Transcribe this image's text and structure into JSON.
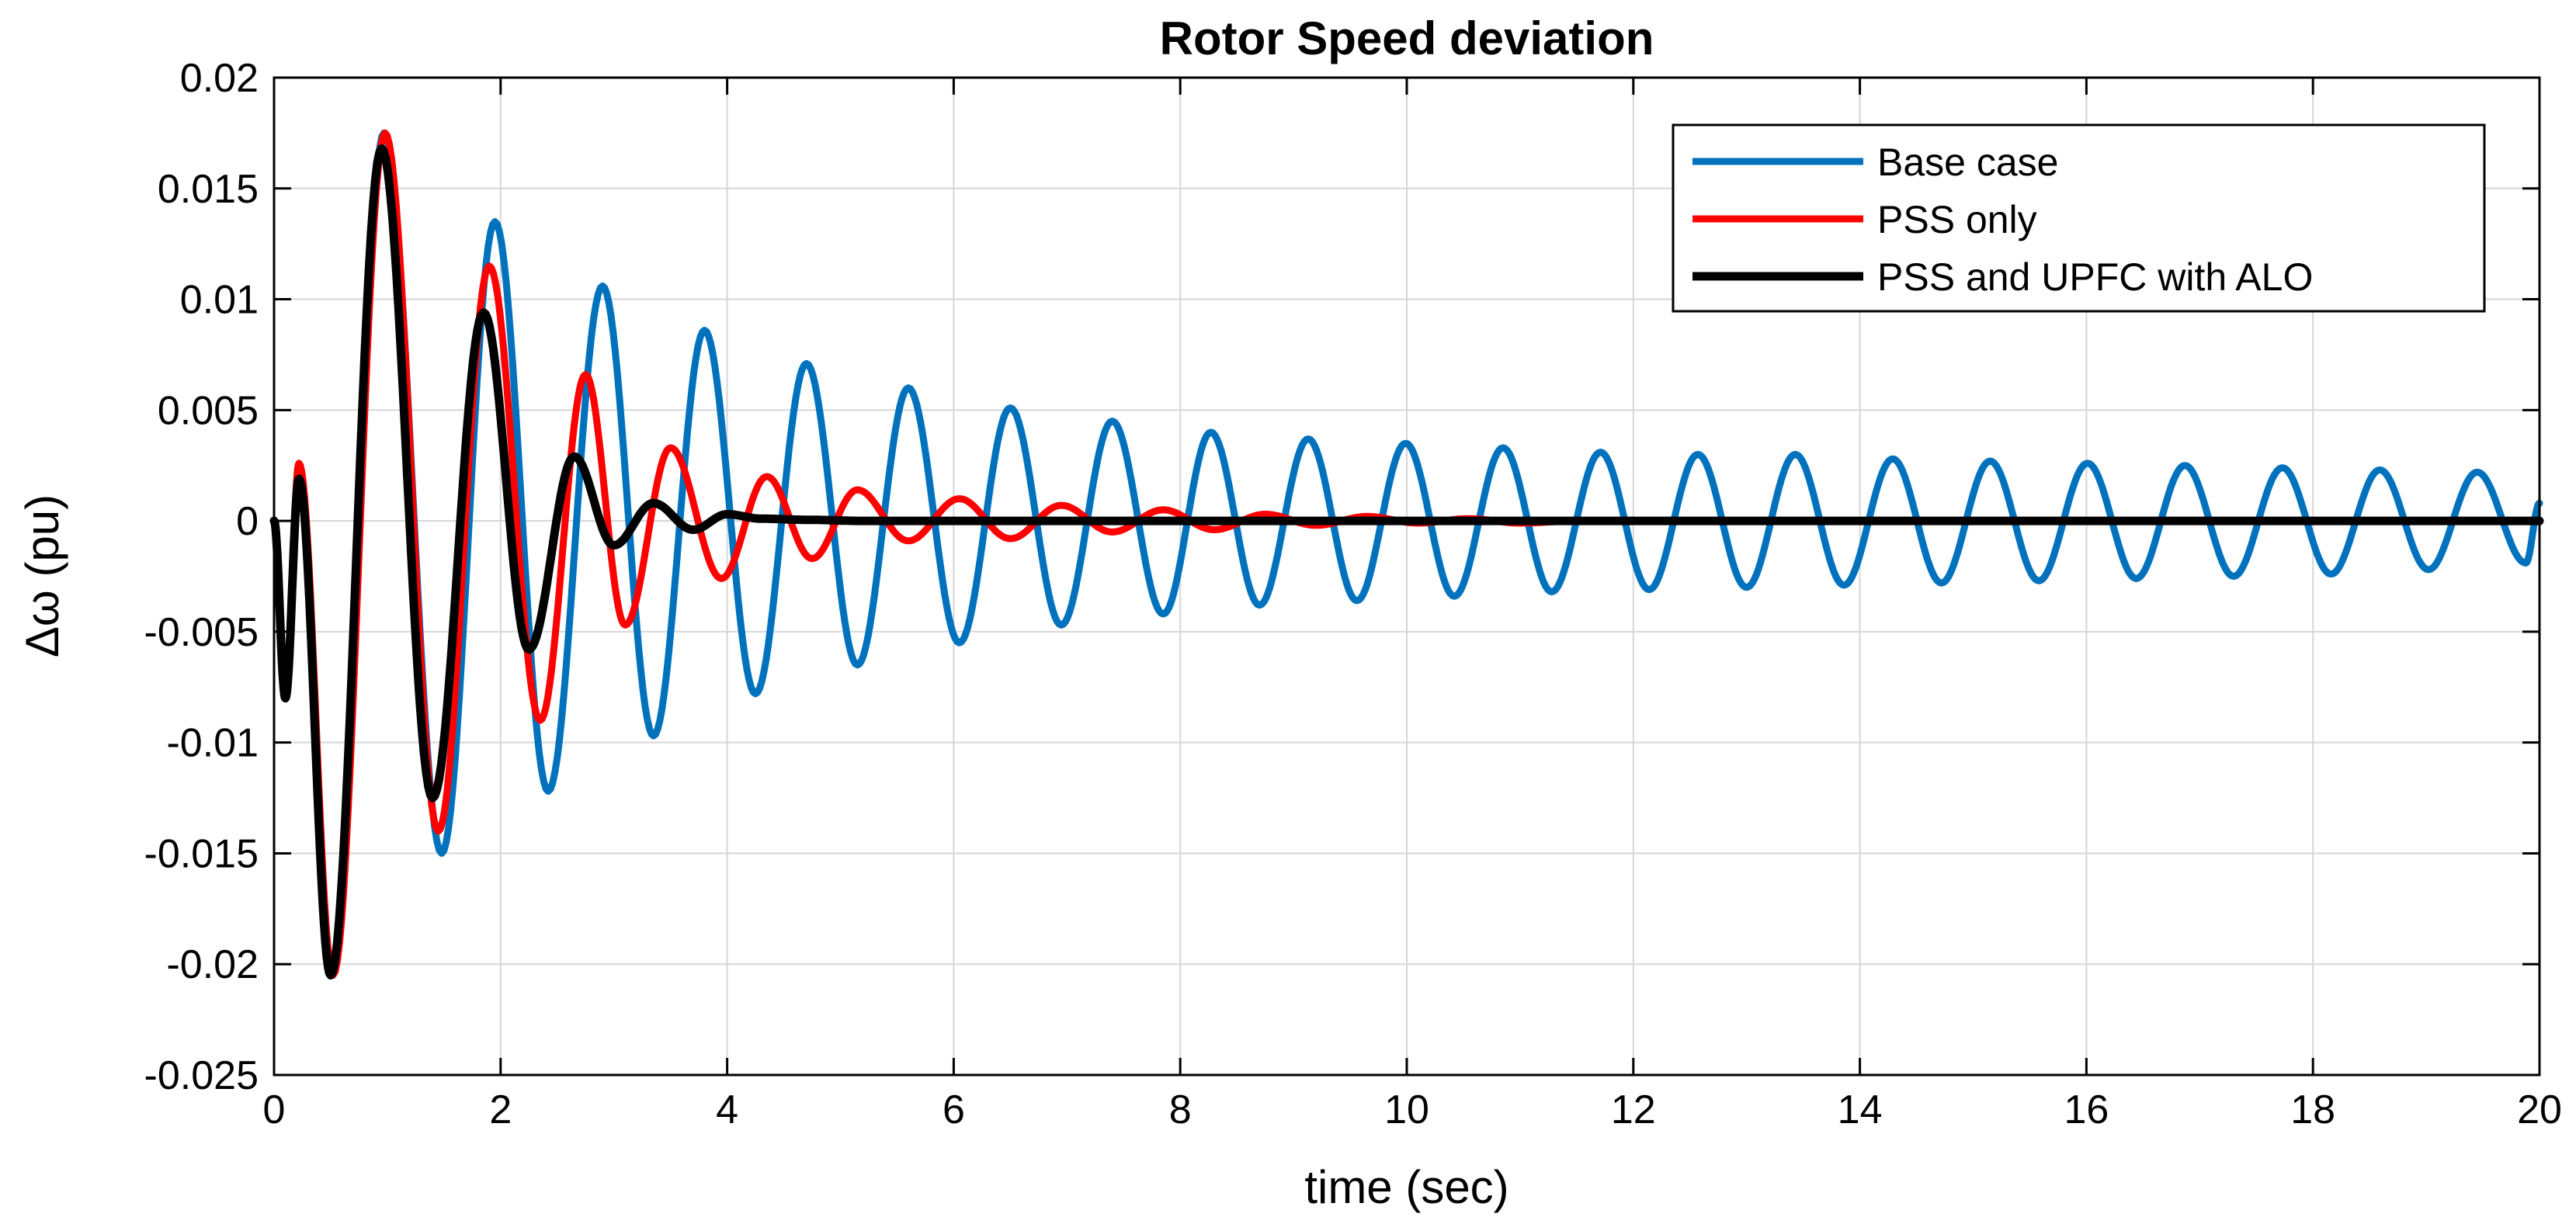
{
  "chart_data": {
    "type": "line",
    "title": "Rotor Speed deviation",
    "xlabel": "time (sec)",
    "ylabel": "Δω (pu)",
    "xlim": [
      0,
      20
    ],
    "ylim": [
      -0.025,
      0.02
    ],
    "xticks": [
      0,
      2,
      4,
      6,
      8,
      10,
      12,
      14,
      16,
      18,
      20
    ],
    "yticks": [
      0.02,
      0.015,
      0.01,
      0.005,
      0,
      -0.005,
      -0.01,
      -0.015,
      -0.02,
      -0.025
    ],
    "ytick_labels": [
      "0.02",
      "0.015",
      "0.01",
      "0.005",
      "0",
      "-0.005",
      "-0.01",
      "-0.015",
      "-0.02",
      "-0.025"
    ],
    "grid": true,
    "legend_position": "top-right",
    "series": [
      {
        "name": "Base case",
        "color": "#0072BD",
        "x": [
          0,
          0.1,
          0.22,
          0.52,
          0.97,
          1.48,
          1.95,
          2.42,
          2.9,
          3.35,
          3.8,
          4.25,
          4.7,
          5.15,
          5.6,
          6.05,
          6.5,
          6.95,
          7.4,
          7.85,
          8.27,
          8.7,
          9.13,
          9.56,
          9.99,
          10.42,
          10.85,
          11.28,
          11.71,
          12.14,
          12.57,
          13.0,
          13.43,
          13.86,
          14.29,
          14.72,
          15.15,
          15.58,
          16.01,
          16.44,
          16.87,
          17.3,
          17.73,
          18.16,
          18.59,
          19.02,
          19.45,
          19.88,
          20.0
        ],
        "y": [
          0,
          -0.008,
          0.002,
          -0.0205,
          0.0175,
          -0.015,
          0.0135,
          -0.0122,
          0.0106,
          -0.0097,
          0.0086,
          -0.0078,
          0.0071,
          -0.0065,
          0.006,
          -0.0055,
          0.0051,
          -0.0047,
          0.0045,
          -0.0042,
          0.004,
          -0.0038,
          0.0037,
          -0.0036,
          0.0035,
          -0.0034,
          0.0033,
          -0.0032,
          0.0031,
          -0.0031,
          0.003,
          -0.003,
          0.003,
          -0.0029,
          0.0028,
          -0.0028,
          0.0027,
          -0.0027,
          0.0026,
          -0.0026,
          0.0025,
          -0.0025,
          0.0024,
          -0.0024,
          0.0023,
          -0.0022,
          0.0022,
          -0.0019,
          0.0008
        ]
      },
      {
        "name": "PSS only",
        "color": "#FF0000",
        "x": [
          0,
          0.1,
          0.22,
          0.52,
          0.98,
          1.45,
          1.9,
          2.35,
          2.75,
          3.1,
          3.5,
          3.95,
          4.35,
          4.75,
          5.15,
          5.6,
          6.05,
          6.5,
          6.95,
          7.4,
          7.85,
          8.3,
          8.75,
          9.2,
          9.65,
          10.1,
          10.55,
          11.0,
          11.5,
          20.0
        ],
        "y": [
          0,
          -0.008,
          0.0026,
          -0.0205,
          0.0175,
          -0.014,
          0.0115,
          -0.009,
          0.0066,
          -0.0047,
          0.0033,
          -0.0026,
          0.002,
          -0.0017,
          0.0014,
          -0.0009,
          0.001,
          -0.0008,
          0.0007,
          -0.0005,
          0.0005,
          -0.0004,
          0.0003,
          -0.0002,
          0.0002,
          -0.0001,
          0.0001,
          -0.0001,
          0,
          0
        ]
      },
      {
        "name": "PSS and UPFC with ALO",
        "color": "#000000",
        "x": [
          0,
          0.1,
          0.22,
          0.5,
          0.95,
          1.4,
          1.85,
          2.25,
          2.65,
          3.0,
          3.35,
          3.7,
          4.0,
          4.3,
          4.7,
          5.2,
          20.0
        ],
        "y": [
          0,
          -0.008,
          0.0019,
          -0.0205,
          0.0168,
          -0.0125,
          0.0094,
          -0.0058,
          0.0029,
          -0.0011,
          0.0008,
          -0.0004,
          0.0003,
          0.0001,
          5e-05,
          0,
          0
        ]
      }
    ]
  }
}
